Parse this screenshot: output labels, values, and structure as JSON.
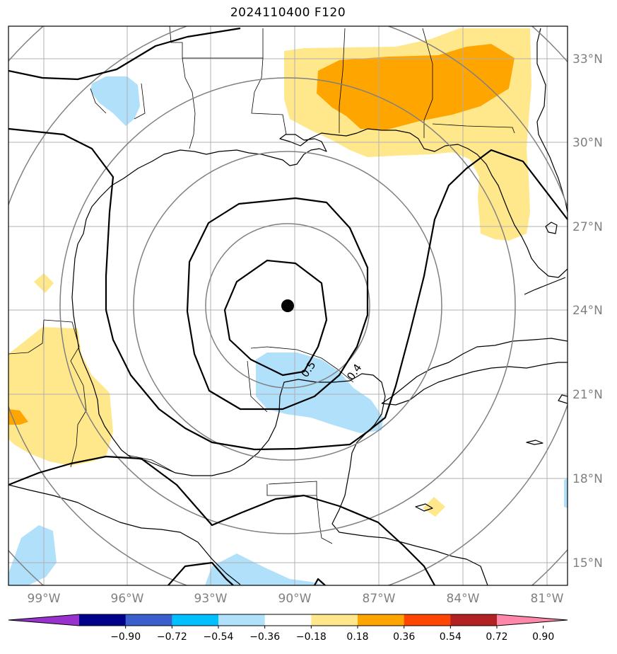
{
  "title": "2024110400 F120",
  "map": {
    "center_marker": {
      "lat": 24.2,
      "lon": -90.3,
      "color": "#000000"
    },
    "lon_labels": [
      "99°W",
      "96°W",
      "93°W",
      "90°W",
      "87°W",
      "84°W",
      "81°W"
    ],
    "lat_labels": [
      "33°N",
      "30°N",
      "27°N",
      "24°N",
      "21°N",
      "18°N",
      "15°N"
    ],
    "contour_labels": [
      "0.5",
      "0.4"
    ],
    "line_colors": {
      "coast": "#000000",
      "grid": "#b0b0b0",
      "range_rings": "#808080"
    }
  },
  "colorbar": {
    "levels": [
      "−0.90",
      "−0.72",
      "−0.54",
      "−0.36",
      "−0.18",
      "0.18",
      "0.36",
      "0.54",
      "0.72",
      "0.90"
    ],
    "colors": [
      "#9932cc",
      "#00008b",
      "#3a5fcd",
      "#00bfff",
      "#b0e0fa",
      "#ffffff",
      "#ffe88c",
      "#ffa500",
      "#ff4500",
      "#b22222",
      "#ff88aa"
    ]
  }
}
